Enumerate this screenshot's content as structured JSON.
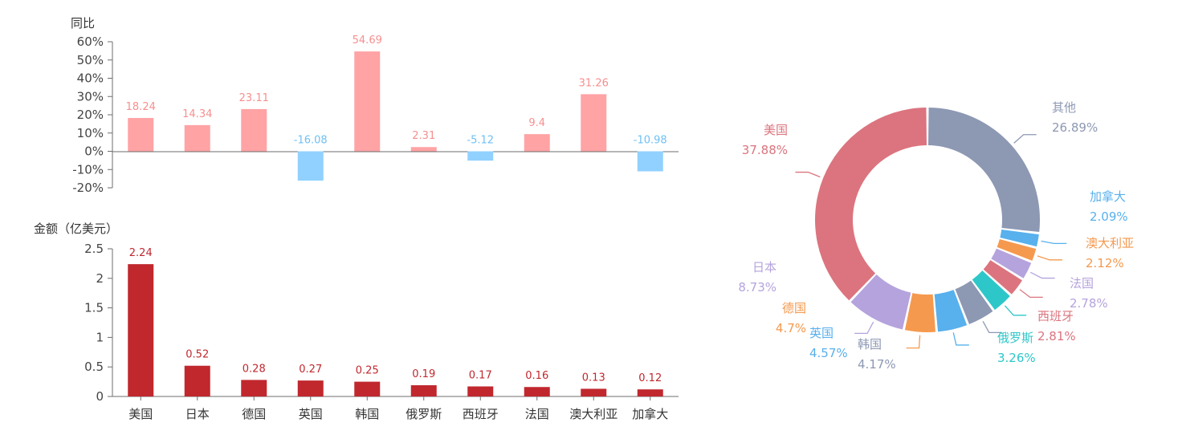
{
  "chart_data": [
    {
      "type": "bar",
      "ylabel": "同比",
      "categories": [
        "美国",
        "日本",
        "德国",
        "英国",
        "韩国",
        "俄罗斯",
        "西班牙",
        "法国",
        "澳大利亚",
        "加拿大"
      ],
      "values": [
        18.24,
        14.34,
        23.11,
        -16.08,
        54.69,
        2.31,
        -5.12,
        9.4,
        31.26,
        -10.98
      ],
      "data_labels": [
        "18.24",
        "14.34",
        "23.11",
        "-16.08",
        "54.69",
        "2.31",
        "-5.12",
        "9.4",
        "31.26",
        "-10.98"
      ],
      "ylim": [
        -20,
        60
      ],
      "yticks": [
        60,
        50,
        40,
        30,
        20,
        10,
        0,
        -10,
        -20
      ],
      "ytick_labels": [
        "60%",
        "50%",
        "40%",
        "30%",
        "20%",
        "10%",
        "0%",
        "-10%",
        "-20%"
      ],
      "colors": {
        "positive": "#ffa3a5",
        "negative": "#91d1ff",
        "positive_label": "#f78f8f",
        "negative_label": "#6fc0f5"
      }
    },
    {
      "type": "bar",
      "ylabel": "金额（亿美元）",
      "categories": [
        "美国",
        "日本",
        "德国",
        "英国",
        "韩国",
        "俄罗斯",
        "西班牙",
        "法国",
        "澳大利亚",
        "加拿大"
      ],
      "values": [
        2.24,
        0.52,
        0.28,
        0.27,
        0.25,
        0.19,
        0.17,
        0.16,
        0.13,
        0.12
      ],
      "data_labels": [
        "2.24",
        "0.52",
        "0.28",
        "0.27",
        "0.25",
        "0.19",
        "0.17",
        "0.16",
        "0.13",
        "0.12"
      ],
      "ylim": [
        0,
        2.5
      ],
      "yticks": [
        2.5,
        2,
        1.5,
        1,
        0.5,
        0
      ],
      "ytick_labels": [
        "2.5",
        "2",
        "1.5",
        "1",
        "0.5",
        "0"
      ],
      "colors": {
        "bar": "#c0282e",
        "label": "#c0282e"
      }
    },
    {
      "type": "pie",
      "donut": true,
      "slices": [
        {
          "name": "其他",
          "percent": "26.89%",
          "value": 26.89,
          "color": "#8d98b3"
        },
        {
          "name": "加拿大",
          "percent": "2.09%",
          "value": 2.09,
          "color": "#58b0ec"
        },
        {
          "name": "澳大利亚",
          "percent": "2.12%",
          "value": 2.12,
          "color": "#f5994e"
        },
        {
          "name": "法国",
          "percent": "2.78%",
          "value": 2.78,
          "color": "#b5a3dd"
        },
        {
          "name": "西班牙",
          "percent": "2.81%",
          "value": 2.81,
          "color": "#db747e"
        },
        {
          "name": "俄罗斯",
          "percent": "3.26%",
          "value": 3.26,
          "color": "#2ec7c9"
        },
        {
          "name": "韩国",
          "percent": "4.17%",
          "value": 4.17,
          "color": "#8d98b3"
        },
        {
          "name": "英国",
          "percent": "4.57%",
          "value": 4.57,
          "color": "#58b0ec"
        },
        {
          "name": "德国",
          "percent": "4.7%",
          "value": 4.7,
          "color": "#f5994e"
        },
        {
          "name": "日本",
          "percent": "8.73%",
          "value": 8.73,
          "color": "#b5a3dd"
        },
        {
          "name": "美国",
          "percent": "37.88%",
          "value": 37.88,
          "color": "#db747e"
        }
      ]
    }
  ]
}
